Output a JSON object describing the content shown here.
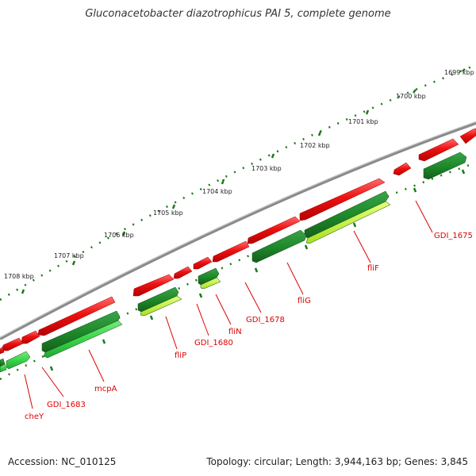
{
  "title": "Gluconacetobacter diazotrophicus PAI 5, complete genome",
  "footer": {
    "accession": "Accession: NC_010125",
    "summary": "Topology: circular; Length: 3,944,163 bp; Genes: 3,845"
  },
  "colors": {
    "backbone": "#8a8a8a",
    "scale_ticks": "#1a7a1a",
    "forward_genes": "#ee1111",
    "reverse_genes_dark": "#1f8a2a",
    "reverse_genes_light": "#3ad44a",
    "reverse_genes_yellow": "#c8f03c",
    "labels": "#dd0000"
  },
  "scale_labels": [
    "1699 kbp",
    "1700 kbp",
    "1701 kbp",
    "1702 kbp",
    "1703 kbp",
    "1704 kbp",
    "1705 kbp",
    "1706 kbp",
    "1707 kbp",
    "1708 kbp"
  ],
  "gene_labels": [
    "GDI_1675",
    "fliF",
    "fliG",
    "GDI_1678",
    "fliN",
    "GDI_1680",
    "fliP",
    "mcpA",
    "GDI_1683",
    "cheY"
  ]
}
